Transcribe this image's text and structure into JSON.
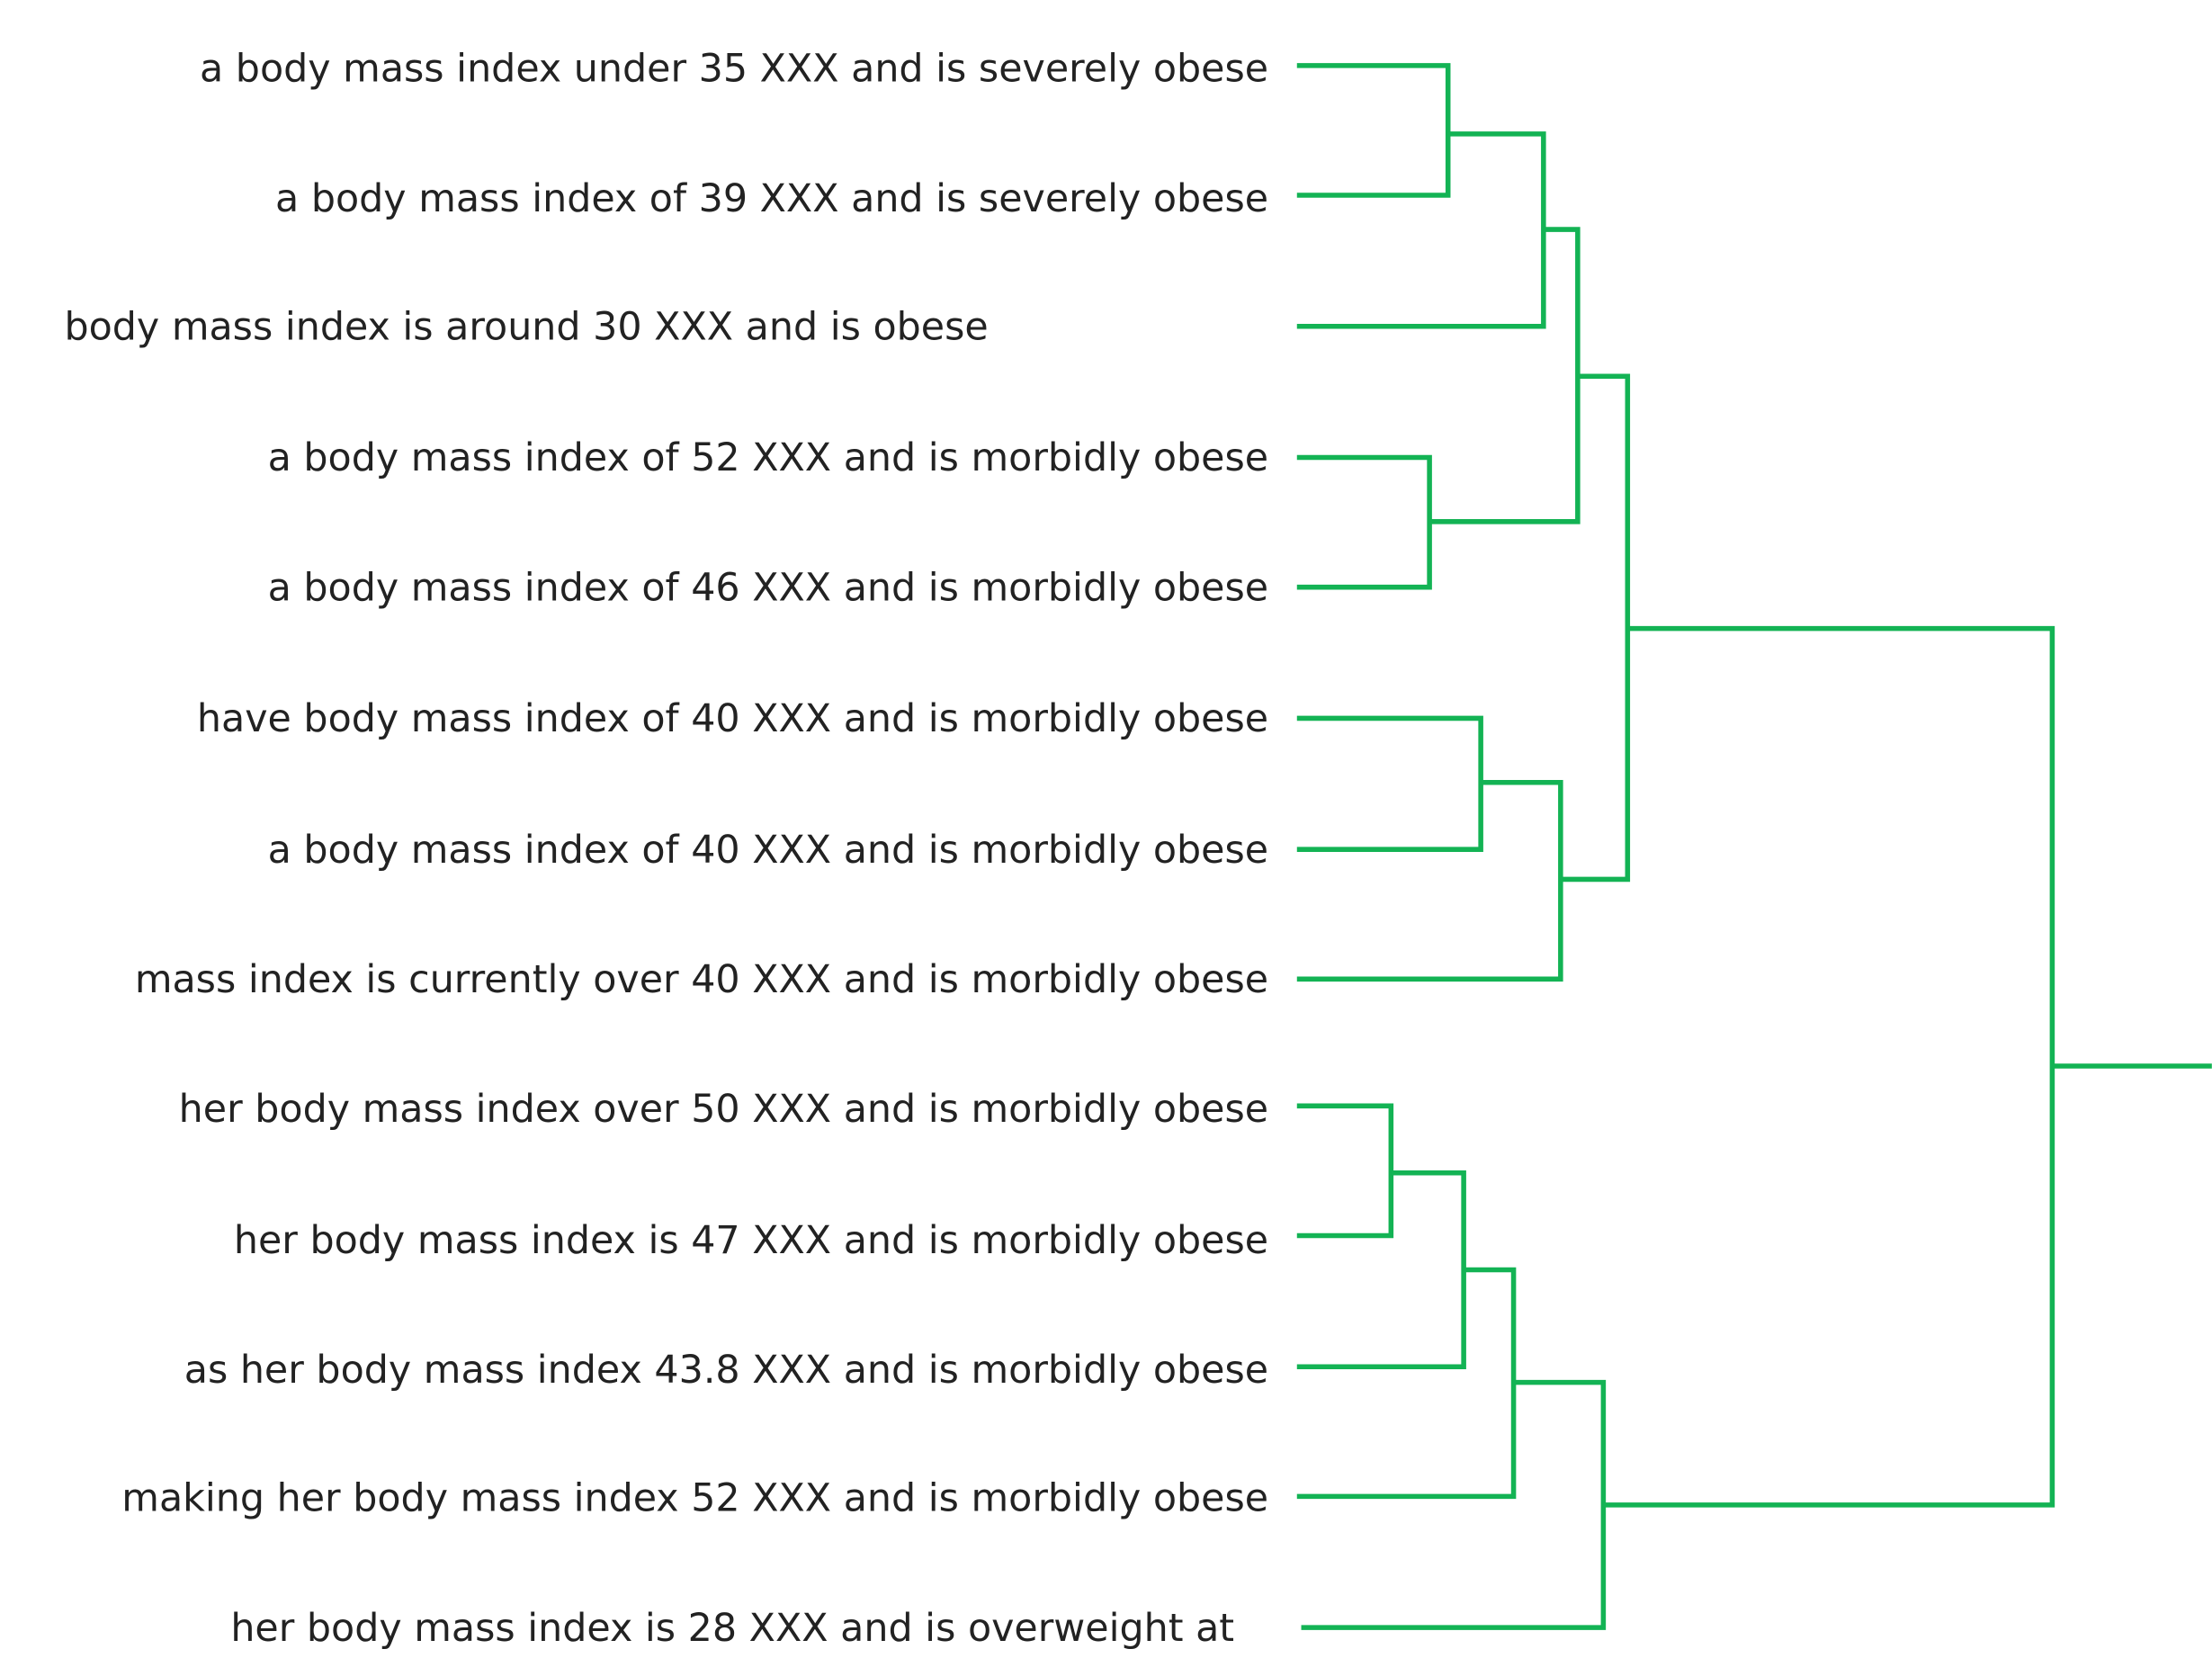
{
  "leaves": [
    "a body mass index under 35 XXX and is severely obese",
    "a body mass index of 39 XXX and is severely obese",
    "body mass index is around 30 XXX and is obese",
    "a body mass index of 52 XXX and is morbidly obese",
    "a body mass index of 46 XXX and is morbidly obese",
    "have body mass index of 40 XXX and is morbidly obese",
    "a body mass index of 40 XXX and is morbidly obese",
    "mass index is currently over 40 XXX and is morbidly obese",
    "her body mass index over 50 XXX and is morbidly obese",
    "her body mass index is 47 XXX and is morbidly obese",
    "as her body mass index 43.8 XXX and is morbidly obese",
    "making her body mass index 52 XXX and is morbidly obese",
    "her body mass index is 28 XXX and is overweight at"
  ]
}
